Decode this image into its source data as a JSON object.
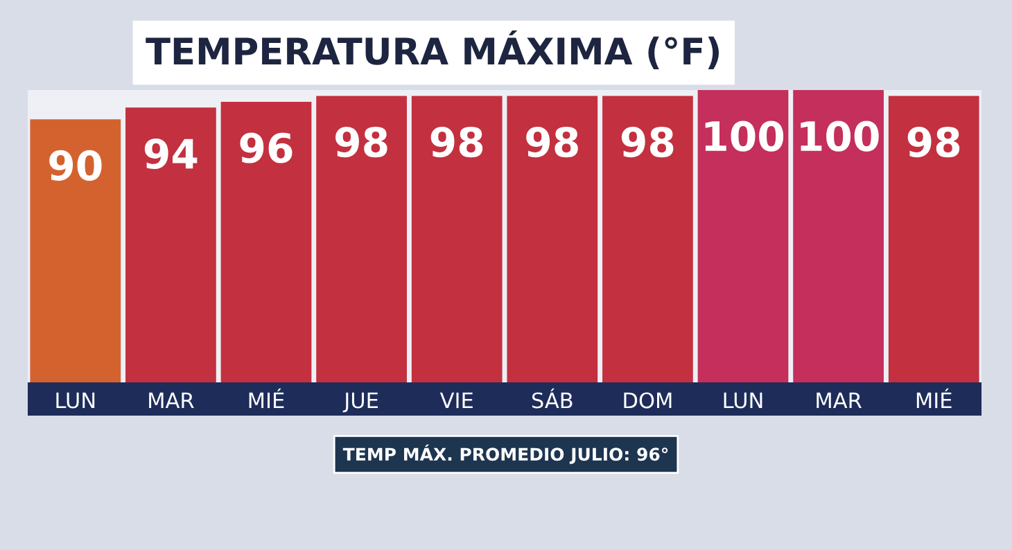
{
  "chart_data": {
    "type": "bar",
    "title": "TEMPERATURA MÁXIMA (°F)",
    "categories": [
      "LUN",
      "MAR",
      "MIÉ",
      "JUE",
      "VIE",
      "SÁB",
      "DOM",
      "LUN",
      "MAR",
      "MIÉ"
    ],
    "values": [
      90,
      94,
      96,
      98,
      98,
      98,
      98,
      100,
      100,
      98
    ],
    "colors": [
      "#d4622f",
      "#c3303f",
      "#c3303f",
      "#c3303f",
      "#c3303f",
      "#c3303f",
      "#c3303f",
      "#c42f5c",
      "#c42f5c",
      "#c3303f"
    ],
    "data_labels": true,
    "annotations": [
      "TEMP MÁX. PROMEDIO JULIO: 96°"
    ]
  }
}
